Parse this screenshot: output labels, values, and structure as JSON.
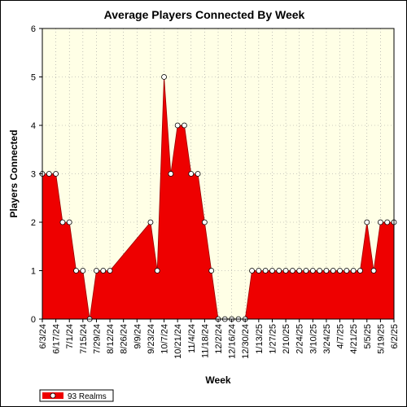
{
  "chart_data": {
    "type": "area",
    "title": "Average Players Connected By Week",
    "xlabel": "Week",
    "ylabel": "Players Connected",
    "ylim": [
      0,
      6
    ],
    "yticks": [
      0,
      1,
      2,
      3,
      4,
      5,
      6
    ],
    "grid": true,
    "legend_position": "bottom-left",
    "background_color": "#ffffe6",
    "series_color": "#ee0000",
    "x_tick_labels": [
      "6/3/24",
      "6/17/24",
      "7/1/24",
      "7/15/24",
      "7/29/24",
      "8/12/24",
      "8/26/24",
      "9/9/24",
      "9/23/24",
      "10/7/24",
      "10/21/24",
      "11/4/24",
      "11/18/24",
      "12/2/24",
      "12/16/24",
      "12/30/24",
      "1/13/25",
      "1/27/25",
      "2/10/25",
      "2/24/25",
      "3/10/25",
      "3/24/25",
      "4/7/25",
      "4/21/25",
      "5/5/25",
      "5/19/25",
      "6/2/25"
    ],
    "x": [
      "6/3/24",
      "6/10/24",
      "6/17/24",
      "6/24/24",
      "7/1/24",
      "7/8/24",
      "7/15/24",
      "7/22/24",
      "7/29/24",
      "8/5/24",
      "8/12/24",
      "9/23/24",
      "9/30/24",
      "10/7/24",
      "10/14/24",
      "10/21/24",
      "10/28/24",
      "11/4/24",
      "11/11/24",
      "11/18/24",
      "11/25/24",
      "12/2/24",
      "12/9/24",
      "12/16/24",
      "12/23/24",
      "12/30/24",
      "1/6/25",
      "1/13/25",
      "1/20/25",
      "1/27/25",
      "2/3/25",
      "2/10/25",
      "2/17/25",
      "2/24/25",
      "3/3/25",
      "3/10/25",
      "3/17/25",
      "3/24/25",
      "3/31/25",
      "4/7/25",
      "4/14/25",
      "4/21/25",
      "4/28/25",
      "5/5/25",
      "5/12/25",
      "5/19/25",
      "5/26/25",
      "6/2/25"
    ],
    "series": [
      {
        "name": "93 Realms",
        "values": [
          3,
          3,
          3,
          2,
          2,
          1,
          1,
          0,
          1,
          1,
          1,
          2,
          1,
          5,
          3,
          4,
          4,
          3,
          3,
          2,
          1,
          0,
          0,
          0,
          0,
          0,
          1,
          1,
          1,
          1,
          1,
          1,
          1,
          1,
          1,
          1,
          1,
          1,
          1,
          1,
          1,
          1,
          1,
          2,
          1,
          2,
          2,
          2
        ]
      }
    ]
  }
}
